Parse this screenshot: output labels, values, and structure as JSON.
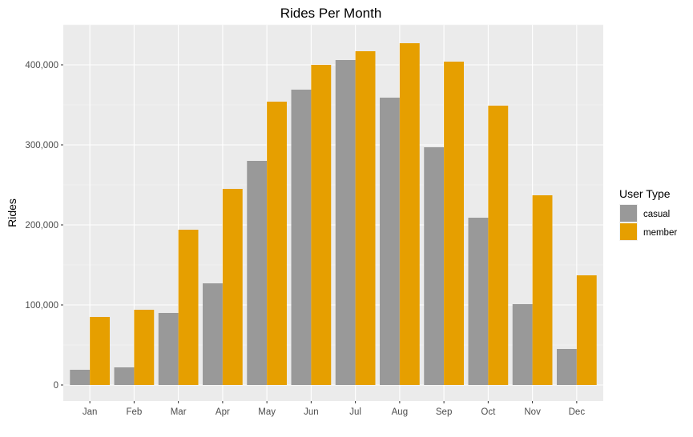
{
  "chart_data": {
    "type": "bar",
    "title": "Rides Per Month",
    "xlabel": "",
    "ylabel": "Rides",
    "ylim": [
      -20000,
      450000
    ],
    "yticks": [
      0,
      100000,
      200000,
      300000,
      400000
    ],
    "ytick_labels": [
      "0",
      "100,000",
      "200,000",
      "300,000",
      "400,000"
    ],
    "categories": [
      "Jan",
      "Feb",
      "Mar",
      "Apr",
      "May",
      "Jun",
      "Jul",
      "Aug",
      "Sep",
      "Oct",
      "Nov",
      "Dec"
    ],
    "series": [
      {
        "name": "casual",
        "color": "#999999",
        "values": [
          19000,
          22000,
          90000,
          127000,
          280000,
          369000,
          406000,
          359000,
          297000,
          209000,
          101000,
          45000
        ]
      },
      {
        "name": "member",
        "color": "#E69F00",
        "values": [
          85000,
          94000,
          194000,
          245000,
          354000,
          400000,
          417000,
          427000,
          404000,
          349000,
          237000,
          137000
        ]
      }
    ],
    "grid": true,
    "panel_background": "#EBEBEB",
    "legend": {
      "title": "User Type",
      "position": "right"
    }
  }
}
